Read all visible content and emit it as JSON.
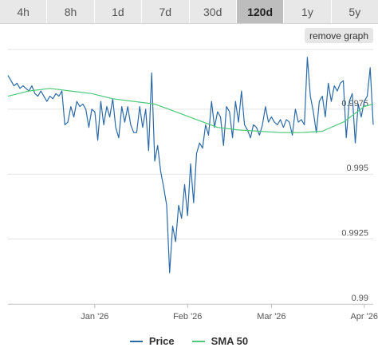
{
  "tabs": [
    "4h",
    "8h",
    "1d",
    "7d",
    "30d",
    "120d",
    "1y",
    "5y"
  ],
  "active_tab": "120d",
  "remove_graph_label": "remove graph",
  "colors": {
    "price": "#2b6aa6",
    "sma": "#4cc97a",
    "grid": "#e3e3e3"
  },
  "chart_data": {
    "type": "line",
    "xlabel": "",
    "ylabel": "",
    "x_ticks": [
      {
        "label": "Jan '26",
        "date": "2026-01-01"
      },
      {
        "label": "Feb '26",
        "date": "2026-02-01"
      },
      {
        "label": "Mar '26",
        "date": "2026-03-01"
      },
      {
        "label": "Apr '26",
        "date": "2026-04-01"
      }
    ],
    "y_ticks": [
      {
        "label": "0.99",
        "value": 0.99
      },
      {
        "label": "0.9925",
        "value": 0.9925
      },
      {
        "label": "0.995",
        "value": 0.995
      },
      {
        "label": "0.9975",
        "value": 0.9975
      }
    ],
    "xlim": [
      "2025-12-03",
      "2026-04-04"
    ],
    "ylim": [
      0.99,
      0.9998
    ],
    "grid": true,
    "legend_position": "bottom",
    "series": [
      {
        "name": "Price",
        "points": [
          [
            "2025-12-03",
            0.9988
          ],
          [
            "2025-12-04",
            0.9986
          ],
          [
            "2025-12-05",
            0.9984
          ],
          [
            "2025-12-06",
            0.9985
          ],
          [
            "2025-12-07",
            0.9983
          ],
          [
            "2025-12-08",
            0.9984
          ],
          [
            "2025-12-09",
            0.9983
          ],
          [
            "2025-12-10",
            0.9982
          ],
          [
            "2025-12-11",
            0.9984
          ],
          [
            "2025-12-12",
            0.9981
          ],
          [
            "2025-12-13",
            0.998
          ],
          [
            "2025-12-14",
            0.9982
          ],
          [
            "2025-12-15",
            0.998
          ],
          [
            "2025-12-16",
            0.9978
          ],
          [
            "2025-12-17",
            0.998
          ],
          [
            "2025-12-18",
            0.9979
          ],
          [
            "2025-12-19",
            0.9981
          ],
          [
            "2025-12-20",
            0.998
          ],
          [
            "2025-12-21",
            0.9982
          ],
          [
            "2025-12-22",
            0.9969
          ],
          [
            "2025-12-23",
            0.997
          ],
          [
            "2025-12-24",
            0.9976
          ],
          [
            "2025-12-25",
            0.9972
          ],
          [
            "2025-12-26",
            0.9978
          ],
          [
            "2025-12-27",
            0.9976
          ],
          [
            "2025-12-28",
            0.9977
          ],
          [
            "2025-12-29",
            0.9975
          ],
          [
            "2025-12-30",
            0.9968
          ],
          [
            "2025-12-31",
            0.9975
          ],
          [
            "2026-01-01",
            0.9974
          ],
          [
            "2026-01-02",
            0.9963
          ],
          [
            "2026-01-03",
            0.9978
          ],
          [
            "2026-01-04",
            0.9969
          ],
          [
            "2026-01-05",
            0.9976
          ],
          [
            "2026-01-06",
            0.9972
          ],
          [
            "2026-01-07",
            0.9979
          ],
          [
            "2026-01-08",
            0.9968
          ],
          [
            "2026-01-09",
            0.9964
          ],
          [
            "2026-01-10",
            0.9976
          ],
          [
            "2026-01-11",
            0.997
          ],
          [
            "2026-01-12",
            0.9976
          ],
          [
            "2026-01-13",
            0.9969
          ],
          [
            "2026-01-14",
            0.9966
          ],
          [
            "2026-01-15",
            0.9966
          ],
          [
            "2026-01-16",
            0.9976
          ],
          [
            "2026-01-17",
            0.9968
          ],
          [
            "2026-01-18",
            0.9975
          ],
          [
            "2026-01-19",
            0.9959
          ],
          [
            "2026-01-20",
            0.9989
          ],
          [
            "2026-01-21",
            0.9955
          ],
          [
            "2026-01-22",
            0.9961
          ],
          [
            "2026-01-23",
            0.9951
          ],
          [
            "2026-01-24",
            0.9945
          ],
          [
            "2026-01-25",
            0.9938
          ],
          [
            "2026-01-26",
            0.9912
          ],
          [
            "2026-01-27",
            0.993
          ],
          [
            "2026-01-28",
            0.9924
          ],
          [
            "2026-01-29",
            0.9938
          ],
          [
            "2026-01-30",
            0.9933
          ],
          [
            "2026-01-31",
            0.9946
          ],
          [
            "2026-02-01",
            0.9934
          ],
          [
            "2026-02-02",
            0.9954
          ],
          [
            "2026-02-03",
            0.9939
          ],
          [
            "2026-02-04",
            0.9958
          ],
          [
            "2026-02-05",
            0.9962
          ],
          [
            "2026-02-06",
            0.996
          ],
          [
            "2026-02-07",
            0.9969
          ],
          [
            "2026-02-08",
            0.9965
          ],
          [
            "2026-02-09",
            0.9978
          ],
          [
            "2026-02-10",
            0.9968
          ],
          [
            "2026-02-11",
            0.9974
          ],
          [
            "2026-02-12",
            0.9972
          ],
          [
            "2026-02-13",
            0.9961
          ],
          [
            "2026-02-14",
            0.9976
          ],
          [
            "2026-02-15",
            0.9974
          ],
          [
            "2026-02-16",
            0.9964
          ],
          [
            "2026-02-17",
            0.9978
          ],
          [
            "2026-02-18",
            0.997
          ],
          [
            "2026-02-19",
            0.9982
          ],
          [
            "2026-02-20",
            0.9969
          ],
          [
            "2026-02-21",
            0.9967
          ],
          [
            "2026-02-22",
            0.9964
          ],
          [
            "2026-02-23",
            0.9969
          ],
          [
            "2026-02-24",
            0.9968
          ],
          [
            "2026-02-25",
            0.9965
          ],
          [
            "2026-02-26",
            0.9969
          ],
          [
            "2026-02-27",
            0.9976
          ],
          [
            "2026-02-28",
            0.997
          ],
          [
            "2026-03-01",
            0.9972
          ],
          [
            "2026-03-02",
            0.997
          ],
          [
            "2026-03-03",
            0.9969
          ],
          [
            "2026-03-04",
            0.9971
          ],
          [
            "2026-03-05",
            0.9968
          ],
          [
            "2026-03-06",
            0.9971
          ],
          [
            "2026-03-07",
            0.997
          ],
          [
            "2026-03-08",
            0.9965
          ],
          [
            "2026-03-09",
            0.9975
          ],
          [
            "2026-03-10",
            0.997
          ],
          [
            "2026-03-11",
            0.9971
          ],
          [
            "2026-03-12",
            0.9969
          ],
          [
            "2026-03-13",
            0.9995
          ],
          [
            "2026-03-14",
            0.998
          ],
          [
            "2026-03-15",
            0.9974
          ],
          [
            "2026-03-16",
            0.9966
          ],
          [
            "2026-03-17",
            0.9978
          ],
          [
            "2026-03-18",
            0.998
          ],
          [
            "2026-03-19",
            0.9972
          ],
          [
            "2026-03-20",
            0.9985
          ],
          [
            "2026-03-21",
            0.9978
          ],
          [
            "2026-03-22",
            0.9984
          ],
          [
            "2026-03-23",
            0.9982
          ],
          [
            "2026-03-24",
            0.9985
          ],
          [
            "2026-03-25",
            0.9986
          ],
          [
            "2026-03-26",
            0.9964
          ],
          [
            "2026-03-27",
            0.9978
          ],
          [
            "2026-03-28",
            0.9981
          ],
          [
            "2026-03-29",
            0.9962
          ],
          [
            "2026-03-30",
            0.9977
          ],
          [
            "2026-03-31",
            0.9972
          ],
          [
            "2026-04-01",
            0.9978
          ],
          [
            "2026-04-02",
            0.998
          ],
          [
            "2026-04-03",
            0.9991
          ],
          [
            "2026-04-04",
            0.9969
          ]
        ]
      },
      {
        "name": "SMA 50",
        "points": [
          [
            "2025-12-03",
            0.998
          ],
          [
            "2025-12-10",
            0.9982
          ],
          [
            "2025-12-17",
            0.9983
          ],
          [
            "2025-12-24",
            0.9982
          ],
          [
            "2025-12-31",
            0.9981
          ],
          [
            "2026-01-07",
            0.9979
          ],
          [
            "2026-01-14",
            0.9978
          ],
          [
            "2026-01-21",
            0.9977
          ],
          [
            "2026-01-28",
            0.9974
          ],
          [
            "2026-02-04",
            0.9971
          ],
          [
            "2026-02-11",
            0.9968
          ],
          [
            "2026-02-18",
            0.9967
          ],
          [
            "2026-02-25",
            0.99665
          ],
          [
            "2026-03-04",
            0.9966
          ],
          [
            "2026-03-11",
            0.9966
          ],
          [
            "2026-03-18",
            0.99665
          ],
          [
            "2026-03-25",
            0.997
          ],
          [
            "2026-04-01",
            0.9976
          ],
          [
            "2026-04-04",
            0.9977
          ]
        ]
      }
    ]
  }
}
